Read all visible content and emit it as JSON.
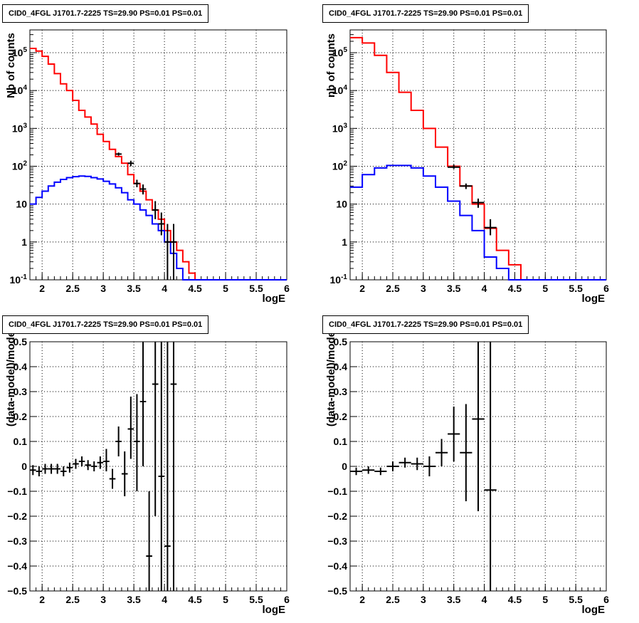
{
  "chart_data": [
    {
      "type": "line",
      "title": "CID0_4FGL J1701.7-2225 TS=29.90 PS=0.01 PS=0.01",
      "xlabel": "logE",
      "ylabel": "Nb of counts",
      "xlim": [
        1.8,
        6.0
      ],
      "ylim": [
        0.1,
        400000
      ],
      "log_y": true,
      "grid": true,
      "x_ticks": [
        "2",
        "2.5",
        "3",
        "3.5",
        "4",
        "4.5",
        "5",
        "5.5",
        "6"
      ],
      "y_ticks": [
        "10^-1",
        "1",
        "10",
        "10^2",
        "10^3",
        "10^4",
        "10^5"
      ],
      "bin_edges": [
        1.8,
        1.9,
        2.0,
        2.1,
        2.2,
        2.3,
        2.4,
        2.5,
        2.6,
        2.7,
        2.8,
        2.9,
        3.0,
        3.1,
        3.2,
        3.3,
        3.4,
        3.5,
        3.6,
        3.7,
        3.8,
        3.9,
        4.0,
        4.1,
        4.2,
        4.3,
        4.4,
        4.5,
        4.6,
        4.7,
        4.8,
        4.9,
        5.0,
        5.1,
        5.2,
        5.3,
        5.4,
        5.5,
        5.6,
        5.7,
        5.8,
        5.9,
        6.0
      ],
      "series": [
        {
          "color": "#ff0000",
          "style": "step",
          "values": [
            130000,
            110000,
            80000,
            50000,
            28000,
            15000,
            10000,
            5500,
            3000,
            2000,
            1300,
            700,
            450,
            280,
            180,
            120,
            60,
            35,
            22,
            13,
            7,
            4,
            2,
            1,
            0.6,
            0.3,
            0.15,
            0.1,
            0.1,
            0.1,
            0.1,
            0.1,
            0.1,
            0.1,
            0.1,
            0.1,
            0.1,
            0.1,
            0.1,
            0.1,
            0.1,
            0.1
          ]
        },
        {
          "color": "#0000ff",
          "style": "step",
          "values": [
            10,
            15,
            22,
            30,
            38,
            45,
            50,
            53,
            55,
            54,
            50,
            46,
            40,
            34,
            27,
            20,
            13,
            10,
            7,
            5,
            3,
            2,
            1,
            0.5,
            0.2,
            0.1,
            0.1,
            0.1,
            0.1,
            0.1,
            0.1,
            0.1,
            0.1,
            0.1,
            0.1,
            0.1,
            0.1,
            0.1,
            0.1,
            0.1,
            0.1,
            0.1
          ]
        },
        {
          "color": "#000000",
          "style": "errorbar",
          "points": [
            {
              "x": 3.25,
              "y": 210,
              "xerr": 0.05,
              "ylo": 190,
              "yhi": 230
            },
            {
              "x": 3.45,
              "y": 120,
              "xerr": 0.05,
              "ylo": 100,
              "yhi": 140
            },
            {
              "x": 3.55,
              "y": 35,
              "xerr": 0.05,
              "ylo": 28,
              "yhi": 44
            },
            {
              "x": 3.65,
              "y": 25,
              "xerr": 0.05,
              "ylo": 18,
              "yhi": 33
            },
            {
              "x": 3.85,
              "y": 7,
              "xerr": 0.05,
              "ylo": 4,
              "yhi": 12
            },
            {
              "x": 3.95,
              "y": 3,
              "xerr": 0.05,
              "ylo": 1.5,
              "yhi": 6
            },
            {
              "x": 4.05,
              "y": 1,
              "xerr": 0.05,
              "ylo": 0.1,
              "yhi": 3
            },
            {
              "x": 4.15,
              "y": 1,
              "xerr": 0.05,
              "ylo": 0.1,
              "yhi": 3
            }
          ]
        }
      ]
    },
    {
      "type": "line",
      "title": "CID0_4FGL J1701.7-2225 TS=29.90 PS=0.01 PS=0.01",
      "xlabel": "logE",
      "ylabel": "nb of counts",
      "xlim": [
        1.8,
        6.0
      ],
      "ylim": [
        0.1,
        400000
      ],
      "log_y": true,
      "grid": true,
      "x_ticks": [
        "2",
        "2.5",
        "3",
        "3.5",
        "4",
        "4.5",
        "5",
        "5.5",
        "6"
      ],
      "y_ticks": [
        "10^-1",
        "1",
        "10",
        "10^2",
        "10^3",
        "10^4",
        "10^5"
      ],
      "bin_edges": [
        1.8,
        2.0,
        2.2,
        2.4,
        2.6,
        2.8,
        3.0,
        3.2,
        3.4,
        3.6,
        3.8,
        4.0,
        4.2,
        4.4,
        4.6,
        4.8,
        5.0,
        5.2,
        5.4,
        5.6,
        5.8,
        6.0
      ],
      "series": [
        {
          "color": "#ff0000",
          "style": "step",
          "values": [
            250000,
            180000,
            85000,
            30000,
            9000,
            3000,
            1000,
            320,
            100,
            30,
            10,
            2.3,
            0.6,
            0.25,
            0.1,
            0.1,
            0.1,
            0.1,
            0.1,
            0.1,
            0.1
          ]
        },
        {
          "color": "#0000ff",
          "style": "step",
          "values": [
            28,
            60,
            90,
            105,
            105,
            90,
            55,
            28,
            12,
            5,
            2,
            0.4,
            0.2,
            0.1,
            0.1,
            0.1,
            0.1,
            0.1,
            0.1,
            0.1,
            0.1
          ]
        },
        {
          "color": "#000000",
          "style": "errorbar",
          "points": [
            {
              "x": 3.5,
              "y": 95,
              "xerr": 0.1,
              "ylo": 85,
              "yhi": 110
            },
            {
              "x": 3.7,
              "y": 30,
              "xerr": 0.1,
              "ylo": 25,
              "yhi": 35
            },
            {
              "x": 3.9,
              "y": 11,
              "xerr": 0.1,
              "ylo": 8,
              "yhi": 14
            },
            {
              "x": 4.1,
              "y": 2.4,
              "xerr": 0.1,
              "ylo": 1.5,
              "yhi": 4
            }
          ]
        }
      ]
    },
    {
      "type": "scatter",
      "title": "CID0_4FGL J1701.7-2225 TS=29.90 PS=0.01 PS=0.01",
      "xlabel": "logE",
      "ylabel": "(data-model)/model",
      "xlim": [
        1.8,
        6.0
      ],
      "ylim": [
        -0.5,
        0.5
      ],
      "grid": true,
      "x_ticks": [
        "2",
        "2.5",
        "3",
        "3.5",
        "4",
        "4.5",
        "5",
        "5.5",
        "6"
      ],
      "y_ticks": [
        "−0.5",
        "−0.4",
        "−0.3",
        "−0.2",
        "−0.1",
        "0",
        "0.1",
        "0.2",
        "0.3",
        "0.4",
        "0.5"
      ],
      "points": [
        {
          "x": 1.85,
          "y": -0.015,
          "xerr": 0.05,
          "ylo": -0.035,
          "yhi": 0.005
        },
        {
          "x": 1.95,
          "y": -0.02,
          "xerr": 0.05,
          "ylo": -0.04,
          "yhi": 0.0
        },
        {
          "x": 2.05,
          "y": -0.01,
          "xerr": 0.05,
          "ylo": -0.03,
          "yhi": 0.01
        },
        {
          "x": 2.15,
          "y": -0.01,
          "xerr": 0.05,
          "ylo": -0.03,
          "yhi": 0.01
        },
        {
          "x": 2.25,
          "y": -0.01,
          "xerr": 0.05,
          "ylo": -0.03,
          "yhi": 0.01
        },
        {
          "x": 2.35,
          "y": -0.02,
          "xerr": 0.05,
          "ylo": -0.04,
          "yhi": 0.0
        },
        {
          "x": 2.45,
          "y": -0.005,
          "xerr": 0.05,
          "ylo": -0.025,
          "yhi": 0.015
        },
        {
          "x": 2.55,
          "y": 0.01,
          "xerr": 0.05,
          "ylo": -0.01,
          "yhi": 0.03
        },
        {
          "x": 2.65,
          "y": 0.02,
          "xerr": 0.05,
          "ylo": 0.0,
          "yhi": 0.04
        },
        {
          "x": 2.75,
          "y": 0.005,
          "xerr": 0.05,
          "ylo": -0.015,
          "yhi": 0.025
        },
        {
          "x": 2.85,
          "y": 0.0,
          "xerr": 0.05,
          "ylo": -0.02,
          "yhi": 0.02
        },
        {
          "x": 2.95,
          "y": 0.015,
          "xerr": 0.05,
          "ylo": -0.01,
          "yhi": 0.04
        },
        {
          "x": 3.05,
          "y": 0.02,
          "xerr": 0.05,
          "ylo": -0.02,
          "yhi": 0.07
        },
        {
          "x": 3.15,
          "y": -0.05,
          "xerr": 0.05,
          "ylo": -0.09,
          "yhi": -0.01
        },
        {
          "x": 3.25,
          "y": 0.1,
          "xerr": 0.05,
          "ylo": 0.04,
          "yhi": 0.16
        },
        {
          "x": 3.35,
          "y": -0.03,
          "xerr": 0.05,
          "ylo": -0.12,
          "yhi": 0.06
        },
        {
          "x": 3.45,
          "y": 0.15,
          "xerr": 0.05,
          "ylo": 0.03,
          "yhi": 0.28
        },
        {
          "x": 3.55,
          "y": 0.1,
          "xerr": 0.05,
          "ylo": -0.1,
          "yhi": 0.29
        },
        {
          "x": 3.65,
          "y": 0.26,
          "xerr": 0.05,
          "ylo": 0.0,
          "yhi": 0.5
        },
        {
          "x": 3.75,
          "y": -0.36,
          "xerr": 0.05,
          "ylo": -0.5,
          "yhi": -0.1
        },
        {
          "x": 3.85,
          "y": 0.33,
          "xerr": 0.05,
          "ylo": -0.2,
          "yhi": 0.5
        },
        {
          "x": 3.95,
          "y": -0.04,
          "xerr": 0.05,
          "ylo": -0.5,
          "yhi": 0.5
        },
        {
          "x": 4.05,
          "y": -0.32,
          "xerr": 0.05,
          "ylo": -0.5,
          "yhi": 0.5
        },
        {
          "x": 4.15,
          "y": 0.33,
          "xerr": 0.05,
          "ylo": -0.5,
          "yhi": 0.5
        }
      ]
    },
    {
      "type": "scatter",
      "title": "CID0_4FGL J1701.7-2225 TS=29.90 PS=0.01 PS=0.01",
      "xlabel": "logE",
      "ylabel": "(data-model)/model",
      "xlim": [
        1.8,
        6.0
      ],
      "ylim": [
        -0.5,
        0.5
      ],
      "grid": true,
      "x_ticks": [
        "2",
        "2.5",
        "3",
        "3.5",
        "4",
        "4.5",
        "5",
        "5.5",
        "6"
      ],
      "y_ticks": [
        "−0.5",
        "−0.4",
        "−0.3",
        "−0.2",
        "−0.1",
        "0",
        "0.1",
        "0.2",
        "0.3",
        "0.4",
        "0.5"
      ],
      "points": [
        {
          "x": 1.9,
          "y": -0.02,
          "xerr": 0.1,
          "ylo": -0.035,
          "yhi": -0.005
        },
        {
          "x": 2.1,
          "y": -0.015,
          "xerr": 0.1,
          "ylo": -0.03,
          "yhi": 0.0
        },
        {
          "x": 2.3,
          "y": -0.02,
          "xerr": 0.1,
          "ylo": -0.035,
          "yhi": -0.005
        },
        {
          "x": 2.5,
          "y": 0.0,
          "xerr": 0.1,
          "ylo": -0.02,
          "yhi": 0.02
        },
        {
          "x": 2.7,
          "y": 0.015,
          "xerr": 0.1,
          "ylo": -0.005,
          "yhi": 0.035
        },
        {
          "x": 2.9,
          "y": 0.01,
          "xerr": 0.1,
          "ylo": -0.015,
          "yhi": 0.035
        },
        {
          "x": 3.1,
          "y": 0.0,
          "xerr": 0.1,
          "ylo": -0.04,
          "yhi": 0.04
        },
        {
          "x": 3.3,
          "y": 0.055,
          "xerr": 0.1,
          "ylo": 0.0,
          "yhi": 0.11
        },
        {
          "x": 3.5,
          "y": 0.13,
          "xerr": 0.1,
          "ylo": 0.02,
          "yhi": 0.24
        },
        {
          "x": 3.7,
          "y": 0.055,
          "xerr": 0.1,
          "ylo": -0.14,
          "yhi": 0.25
        },
        {
          "x": 3.9,
          "y": 0.19,
          "xerr": 0.1,
          "ylo": -0.18,
          "yhi": 0.5
        },
        {
          "x": 4.1,
          "y": -0.095,
          "xerr": 0.1,
          "ylo": -0.5,
          "yhi": 0.5
        }
      ]
    }
  ]
}
